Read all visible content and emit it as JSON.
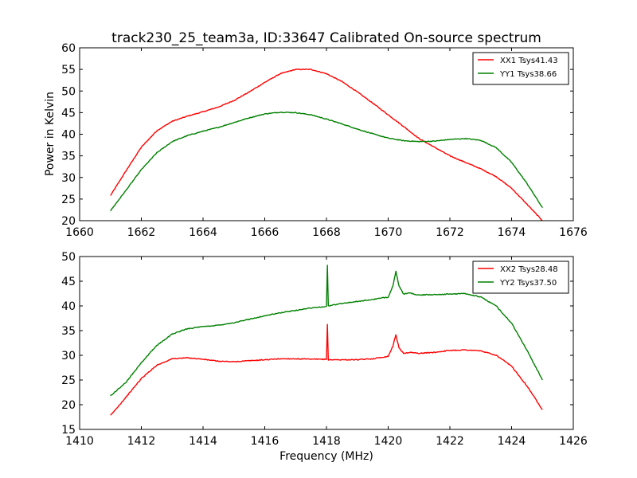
{
  "chart_data": [
    {
      "type": "line",
      "title": "track230_25_team3a, ID:33647 Calibrated On-source spectrum",
      "xlabel": "",
      "ylabel": "Power in Kelvin",
      "xlim": [
        1660,
        1676
      ],
      "ylim": [
        20,
        60
      ],
      "xticks": [
        1660,
        1662,
        1664,
        1666,
        1668,
        1670,
        1672,
        1674,
        1676
      ],
      "yticks": [
        20,
        25,
        30,
        35,
        40,
        45,
        50,
        55,
        60
      ],
      "legend_position": "top-right",
      "series": [
        {
          "name": "XX1 Tsys41.43",
          "color": "#ff0000",
          "points": [
            [
              1661,
              25.8
            ],
            [
              1661.5,
              31.5
            ],
            [
              1662,
              37
            ],
            [
              1662.5,
              40.8
            ],
            [
              1663,
              43
            ],
            [
              1663.5,
              44.2
            ],
            [
              1664,
              45.2
            ],
            [
              1664.5,
              46.3
            ],
            [
              1665,
              47.8
            ],
            [
              1665.5,
              49.8
            ],
            [
              1666,
              52
            ],
            [
              1666.5,
              54
            ],
            [
              1667,
              55
            ],
            [
              1667.5,
              55
            ],
            [
              1668,
              54
            ],
            [
              1668.5,
              52.2
            ],
            [
              1669,
              49.8
            ],
            [
              1669.5,
              47.2
            ],
            [
              1670,
              44.5
            ],
            [
              1670.5,
              41.8
            ],
            [
              1671,
              39
            ],
            [
              1671.5,
              37
            ],
            [
              1672,
              35
            ],
            [
              1672.5,
              33.5
            ],
            [
              1673,
              32
            ],
            [
              1673.5,
              30.2
            ],
            [
              1674,
              27.5
            ],
            [
              1674.5,
              23.8
            ],
            [
              1675,
              20
            ]
          ]
        },
        {
          "name": "YY1 Tsys38.66",
          "color": "#008000",
          "points": [
            [
              1661,
              22.3
            ],
            [
              1661.5,
              27
            ],
            [
              1662,
              31.8
            ],
            [
              1662.5,
              35.7
            ],
            [
              1663,
              38.3
            ],
            [
              1663.5,
              39.7
            ],
            [
              1664,
              40.7
            ],
            [
              1664.5,
              41.6
            ],
            [
              1665,
              42.7
            ],
            [
              1665.5,
              43.8
            ],
            [
              1666,
              44.7
            ],
            [
              1666.5,
              45.1
            ],
            [
              1667,
              45
            ],
            [
              1667.5,
              44.5
            ],
            [
              1668,
              43.5
            ],
            [
              1668.5,
              42.4
            ],
            [
              1669,
              41.2
            ],
            [
              1669.5,
              40.1
            ],
            [
              1670,
              39.1
            ],
            [
              1670.5,
              38.5
            ],
            [
              1671,
              38.3
            ],
            [
              1671.5,
              38.4
            ],
            [
              1672,
              38.8
            ],
            [
              1672.5,
              39
            ],
            [
              1673,
              38.6
            ],
            [
              1673.5,
              36.9
            ],
            [
              1674,
              33.5
            ],
            [
              1674.5,
              28.6
            ],
            [
              1675,
              23
            ]
          ]
        }
      ]
    },
    {
      "type": "line",
      "title": "",
      "xlabel": "Frequency (MHz)",
      "ylabel": "",
      "xlim": [
        1410,
        1426
      ],
      "ylim": [
        15,
        50
      ],
      "xticks": [
        1410,
        1412,
        1414,
        1416,
        1418,
        1420,
        1422,
        1424,
        1426
      ],
      "yticks": [
        15,
        20,
        25,
        30,
        35,
        40,
        45,
        50
      ],
      "legend_position": "top-right",
      "series": [
        {
          "name": "XX2 Tsys28.48",
          "color": "#ff0000",
          "points": [
            [
              1411,
              17.8
            ],
            [
              1411.5,
              21.5
            ],
            [
              1412,
              25.3
            ],
            [
              1412.5,
              28
            ],
            [
              1413,
              29.3
            ],
            [
              1413.5,
              29.5
            ],
            [
              1414,
              29.2
            ],
            [
              1414.5,
              28.8
            ],
            [
              1415,
              28.7
            ],
            [
              1415.5,
              28.9
            ],
            [
              1416,
              29.1
            ],
            [
              1416.5,
              29.3
            ],
            [
              1417,
              29.3
            ],
            [
              1417.5,
              29.2
            ],
            [
              1418,
              29.2
            ],
            [
              1418.03,
              36.2
            ],
            [
              1418.06,
              29.1
            ],
            [
              1418.5,
              29.1
            ],
            [
              1419,
              29.1
            ],
            [
              1419.5,
              29.3
            ],
            [
              1420,
              29.8
            ],
            [
              1420.15,
              31.8
            ],
            [
              1420.25,
              34.2
            ],
            [
              1420.35,
              31.5
            ],
            [
              1420.5,
              30.4
            ],
            [
              1420.7,
              30.6
            ],
            [
              1421,
              30.4
            ],
            [
              1421.5,
              30.6
            ],
            [
              1422,
              31
            ],
            [
              1422.5,
              31.1
            ],
            [
              1423,
              30.9
            ],
            [
              1423.5,
              30
            ],
            [
              1424,
              27.8
            ],
            [
              1424.5,
              23.8
            ],
            [
              1425,
              19
            ]
          ]
        },
        {
          "name": "YY2 Tsys37.50",
          "color": "#008000",
          "points": [
            [
              1411,
              21.8
            ],
            [
              1411.5,
              24.5
            ],
            [
              1412,
              28.5
            ],
            [
              1412.5,
              32
            ],
            [
              1413,
              34.3
            ],
            [
              1413.5,
              35.4
            ],
            [
              1414,
              35.8
            ],
            [
              1414.5,
              36.1
            ],
            [
              1415,
              36.6
            ],
            [
              1415.5,
              37.3
            ],
            [
              1416,
              38
            ],
            [
              1416.5,
              38.6
            ],
            [
              1417,
              39.1
            ],
            [
              1417.5,
              39.6
            ],
            [
              1418,
              39.9
            ],
            [
              1418.03,
              48.2
            ],
            [
              1418.06,
              40
            ],
            [
              1418.5,
              40.5
            ],
            [
              1419,
              40.9
            ],
            [
              1419.5,
              41.3
            ],
            [
              1420,
              41.8
            ],
            [
              1420.15,
              44
            ],
            [
              1420.25,
              47
            ],
            [
              1420.35,
              44
            ],
            [
              1420.5,
              42.4
            ],
            [
              1420.7,
              42.6
            ],
            [
              1421,
              42.2
            ],
            [
              1421.5,
              42.3
            ],
            [
              1422,
              42.4
            ],
            [
              1422.5,
              42.5
            ],
            [
              1423,
              41.8
            ],
            [
              1423.5,
              40
            ],
            [
              1424,
              36.5
            ],
            [
              1424.5,
              31
            ],
            [
              1425,
              25
            ]
          ]
        }
      ]
    }
  ]
}
